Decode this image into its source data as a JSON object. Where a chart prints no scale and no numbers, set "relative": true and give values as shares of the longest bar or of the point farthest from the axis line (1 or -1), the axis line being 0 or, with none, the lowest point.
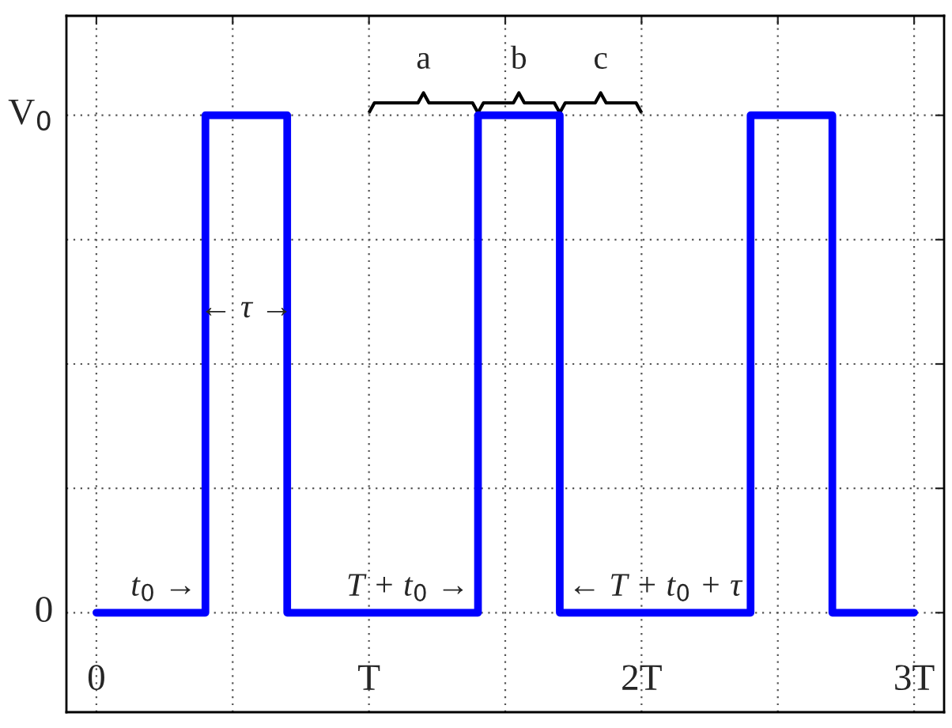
{
  "chart_data": {
    "type": "line",
    "series": [
      {
        "color": "#0000ff",
        "x": [
          0,
          0.4,
          0.4,
          0.7,
          0.7,
          1.4,
          1.4,
          1.7,
          1.7,
          2.4,
          2.4,
          2.7,
          2.7,
          3.0
        ],
        "values": [
          0,
          0,
          1,
          1,
          0,
          0,
          1,
          1,
          0,
          0,
          1,
          1,
          0,
          0
        ]
      }
    ],
    "xlim": [
      -0.11,
      3.11
    ],
    "relative": true,
    "xticks": [
      0,
      {
        "value": 0.5,
        "label": null
      },
      {
        "value": 1,
        "label": "T"
      },
      {
        "value": 1.5,
        "label": null
      },
      {
        "value": 2,
        "label": "2T"
      },
      {
        "value": 2.5,
        "label": null
      },
      {
        "value": 3,
        "label": "3T"
      }
    ],
    "grid": true,
    "line_style": "solid",
    "marker": "none",
    "annotations": [
      "t$_{0}$ →",
      "← τ →",
      "T + t$_{0}$ →",
      "← T + t$_{0}$ + τ",
      "a",
      "b",
      "c",
      "V$_{0}$",
      "0"
    ]
  }
}
